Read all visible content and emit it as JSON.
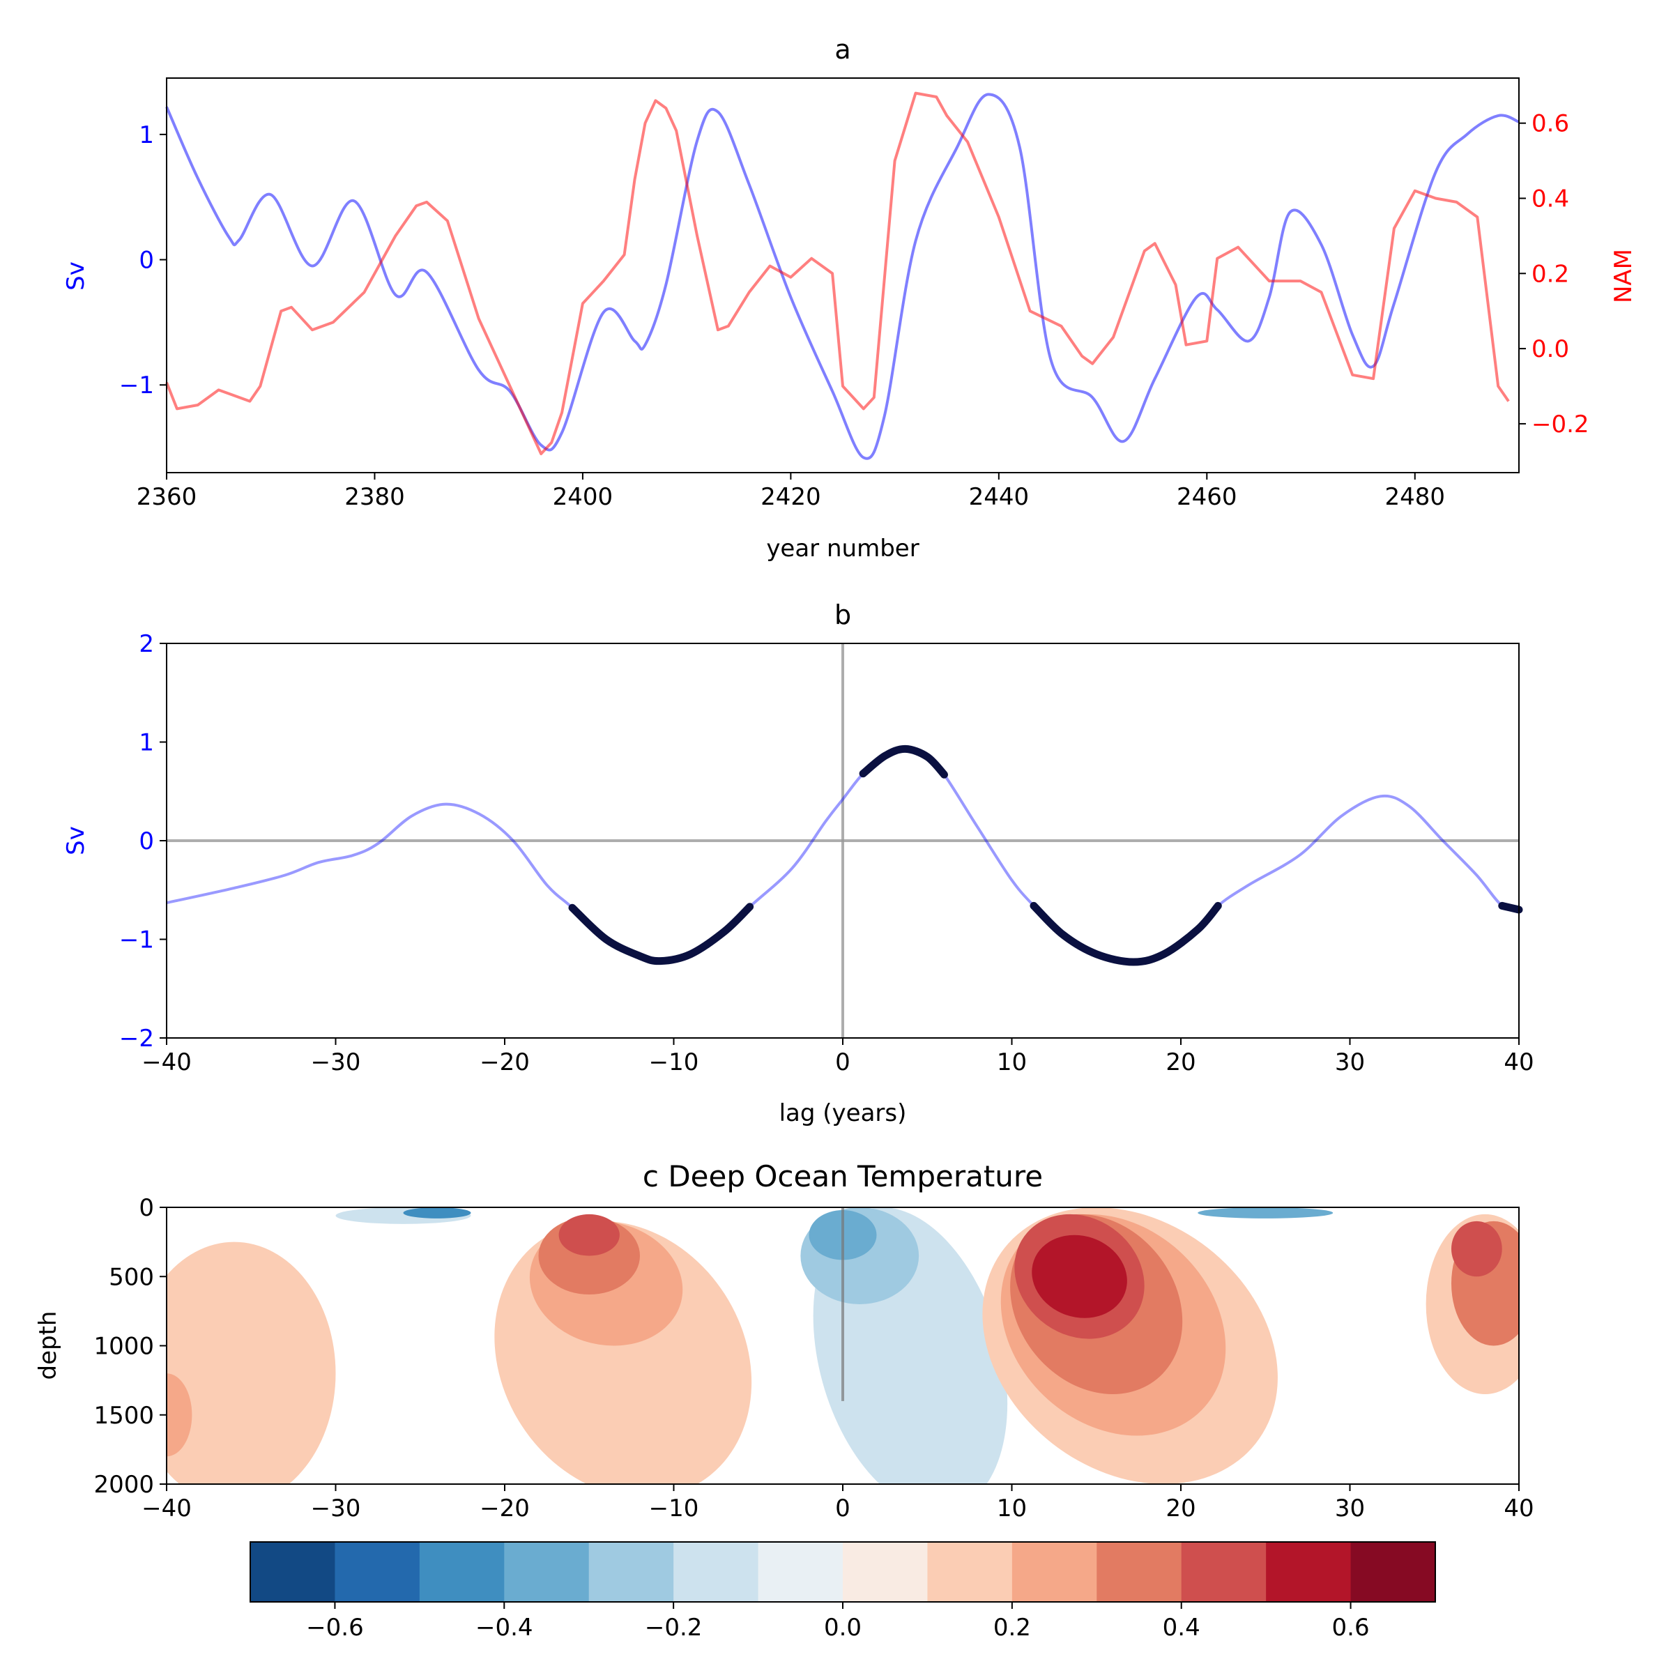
{
  "colors": {
    "sv_series": "#0000ff",
    "nam_series": "#ff0000",
    "sig_points": "#0a1040",
    "ref_lines": "#999999"
  },
  "chart_data": [
    {
      "panel": "a",
      "type": "line",
      "title": "a",
      "xlabel": "year number",
      "ylabel_left": "Sv",
      "ylabel_right": "NAM",
      "xlim": [
        2360,
        2490
      ],
      "ylim_left": [
        -1.7,
        1.45
      ],
      "ylim_right": [
        -0.33,
        0.72
      ],
      "xticks": [
        2360,
        2380,
        2400,
        2420,
        2440,
        2460,
        2480
      ],
      "yticks_left": [
        -1,
        0,
        1
      ],
      "yticks_right": [
        -0.2,
        0.0,
        0.2,
        0.4,
        0.6
      ],
      "ytick_labels_left": [
        "−1",
        "0",
        "1"
      ],
      "ytick_labels_right": [
        "−0.2",
        "0.0",
        "0.2",
        "0.4",
        "0.6"
      ],
      "series": [
        {
          "name": "Sv",
          "axis": "left",
          "x": [
            2360,
            2363,
            2366,
            2367,
            2370,
            2374,
            2378,
            2382,
            2385,
            2390,
            2393,
            2396,
            2398,
            2402,
            2405,
            2406,
            2408,
            2411,
            2413,
            2416,
            2420,
            2424,
            2427,
            2429,
            2432,
            2436,
            2439,
            2442,
            2445,
            2449,
            2452,
            2455,
            2459,
            2461,
            2464,
            2466,
            2468,
            2471,
            2474,
            2476,
            2478,
            2482,
            2485,
            2488,
            2490
          ],
          "y": [
            1.22,
            0.65,
            0.18,
            0.16,
            0.52,
            -0.05,
            0.47,
            -0.28,
            -0.1,
            -0.88,
            -1.05,
            -1.48,
            -1.38,
            -0.42,
            -0.65,
            -0.68,
            -0.2,
            0.95,
            1.18,
            0.6,
            -0.3,
            -1.05,
            -1.58,
            -1.25,
            0.15,
            0.9,
            1.32,
            0.9,
            -0.8,
            -1.1,
            -1.45,
            -0.95,
            -0.3,
            -0.4,
            -0.65,
            -0.3,
            0.38,
            0.12,
            -0.6,
            -0.85,
            -0.35,
            0.7,
            1.0,
            1.15,
            1.1
          ]
        },
        {
          "name": "NAM",
          "axis": "right",
          "x": [
            2360,
            2361,
            2363,
            2365,
            2366,
            2368,
            2369,
            2371,
            2372,
            2374,
            2376,
            2379,
            2382,
            2384,
            2385,
            2387,
            2390,
            2393,
            2396,
            2397,
            2398,
            2400,
            2401,
            2402,
            2404,
            2405,
            2406,
            2407,
            2408,
            2409,
            2411,
            2413,
            2414,
            2416,
            2418,
            2420,
            2422,
            2424,
            2425,
            2427,
            2428,
            2430,
            2432,
            2434,
            2435,
            2437,
            2440,
            2443,
            2446,
            2448,
            2449,
            2451,
            2454,
            2455,
            2457,
            2458,
            2460,
            2461,
            2463,
            2466,
            2469,
            2471,
            2474,
            2476,
            2478,
            2480,
            2482,
            2484,
            2486,
            2488,
            2489
          ],
          "y": [
            -0.09,
            -0.16,
            -0.15,
            -0.11,
            -0.12,
            -0.14,
            -0.1,
            0.1,
            0.11,
            0.05,
            0.07,
            0.15,
            0.3,
            0.38,
            0.39,
            0.34,
            0.08,
            -0.1,
            -0.28,
            -0.25,
            -0.17,
            0.12,
            0.15,
            0.18,
            0.25,
            0.45,
            0.6,
            0.66,
            0.64,
            0.58,
            0.3,
            0.05,
            0.06,
            0.15,
            0.22,
            0.19,
            0.24,
            0.2,
            -0.1,
            -0.16,
            -0.13,
            0.5,
            0.68,
            0.67,
            0.62,
            0.55,
            0.35,
            0.1,
            0.06,
            -0.02,
            -0.04,
            0.03,
            0.26,
            0.28,
            0.17,
            0.01,
            0.02,
            0.24,
            0.27,
            0.18,
            0.18,
            0.15,
            -0.07,
            -0.08,
            0.32,
            0.42,
            0.4,
            0.39,
            0.35,
            -0.1,
            -0.14
          ]
        }
      ]
    },
    {
      "panel": "b",
      "type": "line",
      "title": "b",
      "xlabel": "lag (years)",
      "ylabel": "Sv",
      "xlim": [
        -40,
        40
      ],
      "ylim": [
        -2,
        2
      ],
      "xticks": [
        -40,
        -30,
        -20,
        -10,
        0,
        10,
        20,
        30,
        40
      ],
      "yticks": [
        -2,
        -1,
        0,
        1,
        2
      ],
      "xtick_labels": [
        "−40",
        "−30",
        "−20",
        "−10",
        "0",
        "10",
        "20",
        "30",
        "40"
      ],
      "ytick_labels": [
        "−2",
        "−1",
        "0",
        "1",
        "2"
      ],
      "reference_lines": {
        "x0": 0,
        "y0": 0
      },
      "series": [
        {
          "name": "Sv",
          "x": [
            -40,
            -36,
            -33,
            -31,
            -29,
            -27.5,
            -25.5,
            -23.5,
            -21.5,
            -19.5,
            -17.5,
            -16,
            -14,
            -12,
            -10.8,
            -9,
            -7,
            -5.5,
            -3,
            -1,
            0,
            1.2,
            2.5,
            3.7,
            5,
            6,
            8,
            10,
            11.3,
            13,
            15,
            17.2,
            19,
            21,
            22.2,
            24,
            27,
            29.5,
            31.8,
            33.5,
            35.5,
            37.5,
            39,
            40
          ],
          "y": [
            -0.63,
            -0.48,
            -0.35,
            -0.22,
            -0.15,
            -0.03,
            0.25,
            0.37,
            0.27,
            0.0,
            -0.45,
            -0.68,
            -1.0,
            -1.17,
            -1.22,
            -1.15,
            -0.92,
            -0.67,
            -0.28,
            0.2,
            0.42,
            0.68,
            0.86,
            0.93,
            0.85,
            0.67,
            0.13,
            -0.4,
            -0.66,
            -0.95,
            -1.15,
            -1.23,
            -1.15,
            -0.9,
            -0.66,
            -0.45,
            -0.15,
            0.25,
            0.45,
            0.35,
            0.0,
            -0.35,
            -0.66,
            -0.7
          ]
        }
      ],
      "significant_segments": [
        {
          "x": [
            -16,
            -14,
            -12,
            -10.8,
            -9,
            -7,
            -5.5
          ],
          "y": [
            -0.68,
            -1.0,
            -1.17,
            -1.22,
            -1.15,
            -0.92,
            -0.67
          ]
        },
        {
          "x": [
            1.2,
            2.5,
            3.7,
            5,
            6
          ],
          "y": [
            0.68,
            0.86,
            0.93,
            0.85,
            0.67
          ]
        },
        {
          "x": [
            11.3,
            13,
            15,
            17.2,
            19,
            21,
            22.2
          ],
          "y": [
            -0.66,
            -0.95,
            -1.15,
            -1.23,
            -1.15,
            -0.9,
            -0.66
          ]
        },
        {
          "x": [
            39,
            40
          ],
          "y": [
            -0.66,
            -0.7
          ]
        }
      ]
    },
    {
      "panel": "c",
      "type": "heatmap",
      "title": "c Deep Ocean Temperature",
      "xlabel": "",
      "ylabel": "depth",
      "xlim": [
        -40,
        40
      ],
      "ylim": [
        2000,
        0
      ],
      "xticks": [
        -40,
        -30,
        -20,
        -10,
        0,
        10,
        20,
        30,
        40
      ],
      "yticks": [
        0,
        500,
        1000,
        1500,
        2000
      ],
      "xtick_labels": [
        "−40",
        "−30",
        "−20",
        "−10",
        "0",
        "10",
        "20",
        "30",
        "40"
      ],
      "ytick_labels": [
        "0",
        "500",
        "1000",
        "1500",
        "2000"
      ],
      "reference_line_x": 0,
      "colorbar": {
        "levels": [
          -0.7,
          -0.6,
          -0.5,
          -0.4,
          -0.3,
          -0.2,
          -0.1,
          0.0,
          0.1,
          0.2,
          0.3,
          0.4,
          0.5,
          0.6,
          0.7
        ],
        "colors": [
          "#124984",
          "#2369ad",
          "#3f8ec0",
          "#6aacd0",
          "#9fcae1",
          "#cde2ee",
          "#e9f0f4",
          "#f9ebe3",
          "#fbcdb4",
          "#f5a889",
          "#e27b62",
          "#cf4f4e",
          "#b31529",
          "#860a23"
        ],
        "ticks": [
          -0.6,
          -0.4,
          -0.2,
          0.0,
          0.2,
          0.4,
          0.6
        ],
        "tick_labels": [
          "−0.6",
          "−0.4",
          "−0.2",
          "0.0",
          "0.2",
          "0.4",
          "0.6"
        ]
      },
      "anomaly_blobs": [
        {
          "value": 0.15,
          "center_lag": -36,
          "center_depth": 1200,
          "lag_halfwidth": 6.0,
          "depth_halfwidth": 950,
          "tilt": 0.0
        },
        {
          "value": 0.25,
          "center_lag": -40,
          "center_depth": 1500,
          "lag_halfwidth": 1.5,
          "depth_halfwidth": 300,
          "tilt": 0.0
        },
        {
          "value": 0.15,
          "center_lag": -13,
          "center_depth": 1100,
          "lag_halfwidth": 7.5,
          "depth_halfwidth": 1000,
          "tilt": 2.5
        },
        {
          "value": 0.25,
          "center_lag": -14,
          "center_depth": 550,
          "lag_halfwidth": 4.5,
          "depth_halfwidth": 450,
          "tilt": 2.0
        },
        {
          "value": 0.35,
          "center_lag": -15,
          "center_depth": 350,
          "lag_halfwidth": 3.0,
          "depth_halfwidth": 280,
          "tilt": 0.0
        },
        {
          "value": 0.45,
          "center_lag": -15,
          "center_depth": 200,
          "lag_halfwidth": 1.8,
          "depth_halfwidth": 150,
          "tilt": 0.0
        },
        {
          "value": -0.15,
          "center_lag": 4,
          "center_depth": 1100,
          "lag_halfwidth": 5.5,
          "depth_halfwidth": 1100,
          "tilt": 3.0
        },
        {
          "value": -0.25,
          "center_lag": 1,
          "center_depth": 350,
          "lag_halfwidth": 3.5,
          "depth_halfwidth": 350,
          "tilt": 0.0
        },
        {
          "value": -0.35,
          "center_lag": 0,
          "center_depth": 200,
          "lag_halfwidth": 2.0,
          "depth_halfwidth": 180,
          "tilt": 0.0
        },
        {
          "value": -0.2,
          "center_lag": -26,
          "center_depth": 60,
          "lag_halfwidth": 4.0,
          "depth_halfwidth": 60,
          "tilt": 0.0
        },
        {
          "value": -0.45,
          "center_lag": -24,
          "center_depth": 40,
          "lag_halfwidth": 2.0,
          "depth_halfwidth": 40,
          "tilt": 0.0
        },
        {
          "value": -0.4,
          "center_lag": 25,
          "center_depth": 40,
          "lag_halfwidth": 4.0,
          "depth_halfwidth": 40,
          "tilt": 0.0
        },
        {
          "value": 0.15,
          "center_lag": 17,
          "center_depth": 1000,
          "lag_halfwidth": 8.5,
          "depth_halfwidth": 1000,
          "tilt": 4.0
        },
        {
          "value": 0.25,
          "center_lag": 16,
          "center_depth": 850,
          "lag_halfwidth": 6.5,
          "depth_halfwidth": 800,
          "tilt": 3.5
        },
        {
          "value": 0.35,
          "center_lag": 15,
          "center_depth": 700,
          "lag_halfwidth": 5.0,
          "depth_halfwidth": 650,
          "tilt": 3.0
        },
        {
          "value": 0.45,
          "center_lag": 14,
          "center_depth": 500,
          "lag_halfwidth": 3.8,
          "depth_halfwidth": 450,
          "tilt": 2.5
        },
        {
          "value": 0.55,
          "center_lag": 14,
          "center_depth": 500,
          "lag_halfwidth": 2.8,
          "depth_halfwidth": 300,
          "tilt": 2.0
        },
        {
          "value": 0.15,
          "center_lag": 38,
          "center_depth": 700,
          "lag_halfwidth": 3.5,
          "depth_halfwidth": 650,
          "tilt": 0.0
        },
        {
          "value": 0.3,
          "center_lag": 38.5,
          "center_depth": 550,
          "lag_halfwidth": 2.5,
          "depth_halfwidth": 450,
          "tilt": 0.0
        },
        {
          "value": 0.45,
          "center_lag": 37.5,
          "center_depth": 300,
          "lag_halfwidth": 1.5,
          "depth_halfwidth": 200,
          "tilt": 0.0
        }
      ]
    }
  ]
}
